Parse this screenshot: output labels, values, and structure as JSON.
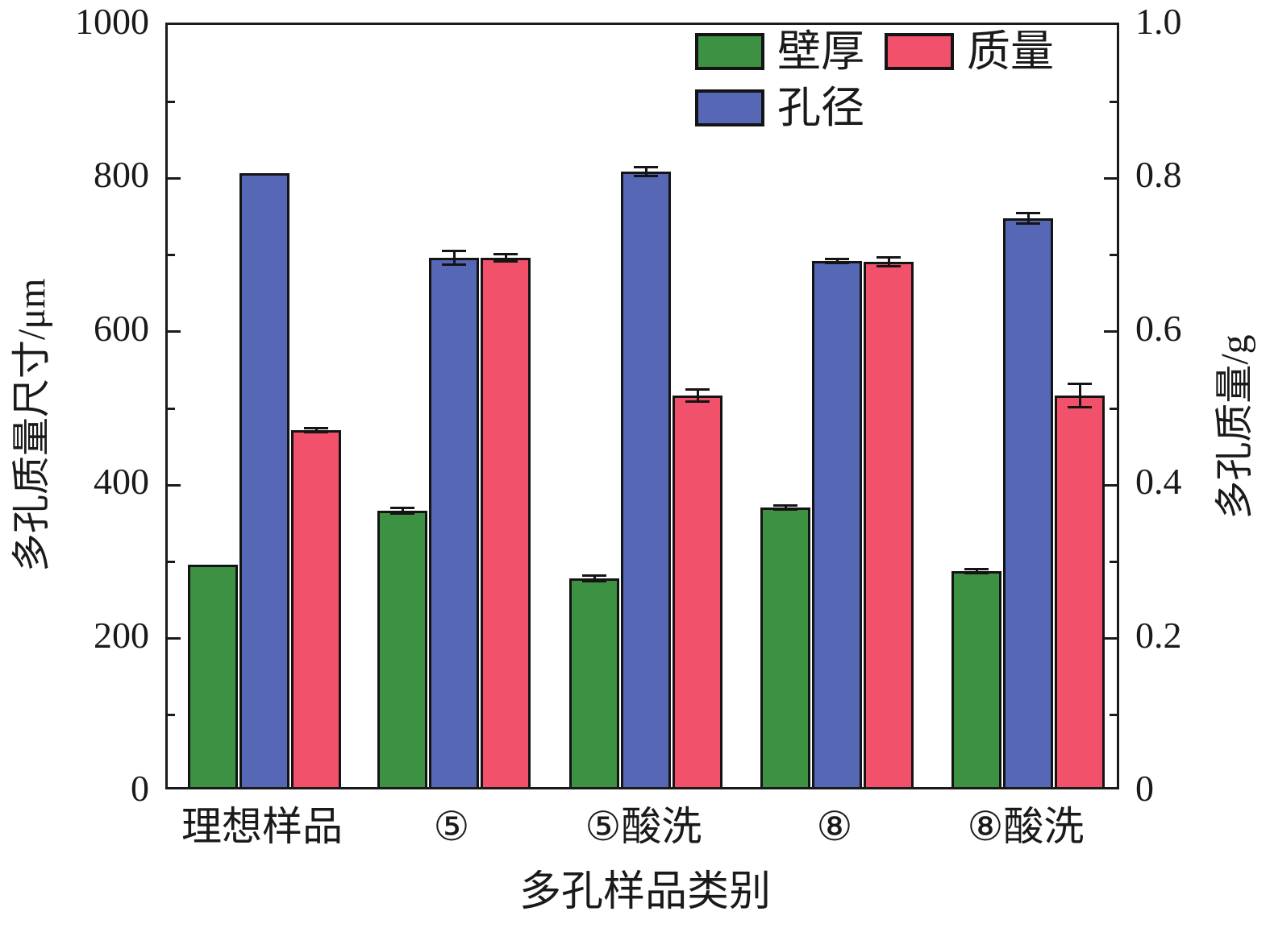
{
  "chart_data": {
    "type": "bar",
    "title": "",
    "categories": [
      "理想样品",
      "⑤",
      "⑤酸洗",
      "⑧",
      "⑧酸洗"
    ],
    "series": [
      {
        "name": "壁厚",
        "axis": "left",
        "color": "#3C9142",
        "values": [
          290,
          360,
          272,
          365,
          282
        ],
        "errors": [
          0,
          4,
          4,
          3,
          3
        ]
      },
      {
        "name": "孔径",
        "axis": "left",
        "color": "#5667B5",
        "values": [
          800,
          690,
          802,
          686,
          742
        ],
        "errors": [
          0,
          9,
          6,
          3,
          7
        ]
      },
      {
        "name": "质量",
        "axis": "right",
        "color": "#F1516A",
        "values": [
          0.465,
          0.69,
          0.51,
          0.685,
          0.51
        ],
        "errors": [
          0.003,
          0.005,
          0.008,
          0.006,
          0.015
        ]
      }
    ],
    "left_axis": {
      "label": "多孔质量尺寸/μm",
      "range": [
        0,
        1000
      ],
      "major_ticks": [
        0,
        200,
        400,
        600,
        800,
        1000
      ],
      "tick_labels": [
        "0",
        "200",
        "400",
        "600",
        "800",
        "1000"
      ],
      "minor_step": 100
    },
    "right_axis": {
      "label": "多孔质量/g",
      "range": [
        0,
        1.0
      ],
      "major_ticks": [
        0,
        0.2,
        0.4,
        0.6,
        0.8,
        1.0
      ],
      "tick_labels": [
        "0",
        "0.2",
        "0.4",
        "0.6",
        "0.8",
        "1.0"
      ],
      "minor_step": 0.1
    },
    "x_axis": {
      "label": "多孔样品类别"
    },
    "legend": {
      "entries": [
        "壁厚",
        "孔径",
        "质量"
      ],
      "position": "top-right-inside"
    },
    "grid": false,
    "colors": {
      "bar_border": "#141414",
      "axis": "#1a1a1a",
      "background": "#ffffff"
    }
  }
}
